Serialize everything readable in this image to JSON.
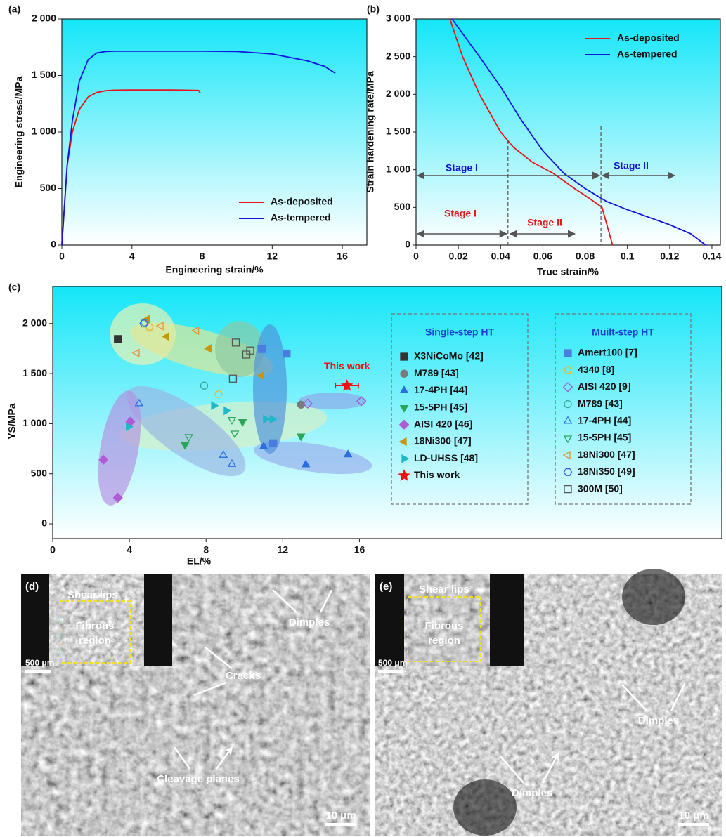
{
  "chart_data": [
    {
      "type": "line",
      "label": "(a)",
      "xlabel": "Engineering strain/%",
      "ylabel": "Engineering stress/MPa",
      "xlim": [
        0,
        17.4
      ],
      "ylim": [
        0,
        2000
      ],
      "xticks": [
        0,
        4,
        8,
        12,
        16
      ],
      "yticks": [
        0,
        500,
        {
          "value": 1000,
          "label": "1 000"
        },
        {
          "value": 1500,
          "label": "1 500"
        },
        {
          "value": 2000,
          "label": "2 000"
        }
      ],
      "legend": "lower right",
      "series": [
        {
          "name": "As-deposited",
          "color": "#e8141a",
          "x": [
            0,
            0.3,
            0.6,
            1.0,
            1.5,
            2.0,
            2.5,
            3,
            4,
            5,
            6,
            7,
            7.8,
            7.9
          ],
          "values": [
            0,
            700,
            1000,
            1200,
            1310,
            1350,
            1365,
            1370,
            1372,
            1372,
            1372,
            1370,
            1368,
            1345
          ]
        },
        {
          "name": "As-tempered",
          "color": "#1414e0",
          "x": [
            0,
            0.3,
            0.6,
            1.0,
            1.5,
            2.0,
            2.5,
            3,
            5,
            8,
            10,
            12,
            14,
            15,
            15.6
          ],
          "values": [
            0,
            700,
            1100,
            1450,
            1640,
            1700,
            1712,
            1715,
            1715,
            1715,
            1712,
            1690,
            1630,
            1580,
            1520
          ]
        }
      ]
    },
    {
      "type": "line",
      "label": "(b)",
      "xlabel": "True strain/%",
      "ylabel": "Strain hardening rate/MPa",
      "xlim": [
        0,
        0.144
      ],
      "ylim": [
        0,
        3000
      ],
      "xticks": [
        0,
        0.02,
        0.04,
        0.06,
        0.08,
        0.1,
        0.12,
        0.14
      ],
      "yticks": [
        0,
        500,
        {
          "value": 1000,
          "label": "1 000"
        },
        {
          "value": 1500,
          "label": "1 500"
        },
        {
          "value": 2000,
          "label": "2 000"
        },
        {
          "value": 2500,
          "label": "2 500"
        },
        {
          "value": 3000,
          "label": "3 000"
        }
      ],
      "legend": "upper right",
      "series": [
        {
          "name": "As-deposited",
          "color": "#e8141a",
          "x": [
            0.016,
            0.022,
            0.03,
            0.036,
            0.04,
            0.046,
            0.055,
            0.065,
            0.075,
            0.082,
            0.088,
            0.09,
            0.093
          ],
          "values": [
            3000,
            2500,
            2000,
            1700,
            1500,
            1300,
            1100,
            950,
            750,
            620,
            500,
            300,
            0
          ]
        },
        {
          "name": "As-tempered",
          "color": "#1414e0",
          "x": [
            0.017,
            0.03,
            0.04,
            0.05,
            0.06,
            0.07,
            0.08,
            0.09,
            0.1,
            0.11,
            0.12,
            0.13,
            0.137
          ],
          "values": [
            3000,
            2500,
            2100,
            1650,
            1250,
            950,
            750,
            580,
            470,
            370,
            270,
            150,
            0
          ]
        }
      ],
      "stage_boundaries": [
        0.0435,
        0.0875
      ],
      "annotations": [
        {
          "text": "Stage I",
          "color": "#1515d0"
        },
        {
          "text": "Stage II",
          "color": "#1515d0"
        },
        {
          "text": "Stage I",
          "color": "#e01818"
        },
        {
          "text": "Stage II",
          "color": "#e01818"
        }
      ]
    },
    {
      "type": "scatter",
      "label": "(c)",
      "xlabel": "EL/%",
      "ylabel": "YS/MPa",
      "annotation": "This work",
      "xlim": [
        0,
        34.9
      ],
      "ylim": [
        -147,
        2370
      ],
      "xticks": [
        0,
        4,
        8,
        12,
        16
      ],
      "yticks": [
        0,
        500,
        {
          "value": 1000,
          "label": "1 000"
        },
        {
          "value": 1500,
          "label": "1 500"
        },
        {
          "value": 2000,
          "label": "2 000"
        }
      ],
      "series_groups": [
        {
          "title": "Single-step HT",
          "series": [
            {
              "name": "X3NiCoMo [42]",
              "color": "#333333",
              "marker": "square",
              "filled": true,
              "x": [
                3.4
              ],
              "values": [
                1845
              ]
            },
            {
              "name": "M789 [43]",
              "color": "#7a7a7a",
              "marker": "circle",
              "filled": true,
              "x": [
                12.95
              ],
              "values": [
                1190
              ]
            },
            {
              "name": "17-4PH [44]",
              "color": "#2a6ee0",
              "marker": "triangle-up",
              "filled": true,
              "x": [
                11.0,
                13.2,
                15.4
              ],
              "values": [
                770,
                590,
                690
              ]
            },
            {
              "name": "15-5PH [45]",
              "color": "#2aa65a",
              "marker": "triangle-down",
              "filled": true,
              "x": [
                12.95,
                9.9,
                6.9
              ],
              "values": [
                875,
                1020,
                790
              ]
            },
            {
              "name": "AISI 420 [46]",
              "color": "#b05ad8",
              "marker": "diamond",
              "filled": true,
              "x": [
                2.65,
                3.4,
                4.05
              ],
              "values": [
                640,
                260,
                1020
              ]
            },
            {
              "name": "18Ni300 [47]",
              "color": "#c8960a",
              "marker": "triangle-left",
              "filled": true,
              "x": [
                8.15,
                5.95,
                10.9,
                4.95
              ],
              "values": [
                1750,
                1870,
                1480,
                2045
              ]
            },
            {
              "name": "LD-UHSS [48]",
              "color": "#1eb8c8",
              "marker": "triangle-right",
              "filled": true,
              "x": [
                8.4,
                9.05,
                3.95,
                11.1,
                11.45
              ],
              "values": [
                1180,
                1130,
                970,
                1045,
                1045
              ]
            },
            {
              "name": "This work",
              "color": "#f01010",
              "marker": "star",
              "filled": true,
              "x": [
                15.35
              ],
              "values": [
                1380
              ],
              "x_error": [
                0.6
              ],
              "y_error": [
                40
              ]
            }
          ]
        },
        {
          "title": "Muilt-step HT",
          "series": [
            {
              "name": "Amert100 [7]",
              "color": "#4a7de0",
              "marker": "square",
              "filled": true,
              "x": [
                10.9,
                12.2,
                11.5
              ],
              "values": [
                1745,
                1700,
                805
              ]
            },
            {
              "name": "4340 [8]",
              "color": "#e8b830",
              "marker": "pentagon",
              "filled": false,
              "x": [
                8.65,
                5.05
              ],
              "values": [
                1295,
                1965
              ]
            },
            {
              "name": "AISI 420 [9]",
              "color": "#9a5ad8",
              "marker": "diamond",
              "filled": false,
              "x": [
                13.3,
                16.1
              ],
              "values": [
                1200,
                1225
              ]
            },
            {
              "name": "M789 [43]",
              "color": "#3aa6a0",
              "marker": "circle",
              "filled": false,
              "x": [
                7.9,
                4.8
              ],
              "values": [
                1380,
                2010
              ]
            },
            {
              "name": "17-4PH [44]",
              "color": "#2a6ee0",
              "marker": "triangle-up",
              "filled": false,
              "x": [
                4.5,
                8.9,
                9.35
              ],
              "values": [
                1200,
                685,
                595
              ]
            },
            {
              "name": "15-5PH [45]",
              "color": "#2aa65a",
              "marker": "triangle-down",
              "filled": false,
              "x": [
                7.1,
                9.35,
                9.5
              ],
              "values": [
                870,
                1040,
                905
              ]
            },
            {
              "name": "18Ni300 [47]",
              "color": "#e8903a",
              "marker": "triangle-left",
              "filled": false,
              "x": [
                7.5,
                4.4,
                5.65
              ],
              "values": [
                1930,
                1705,
                1975
              ]
            },
            {
              "name": "18Ni350 [49]",
              "color": "#3a5ae8",
              "marker": "hexagon",
              "filled": false,
              "x": [
                4.75
              ],
              "values": [
                2000
              ]
            },
            {
              "name": "300M [50]",
              "color": "#555555",
              "marker": "square",
              "filled": false,
              "x": [
                9.55,
                9.4,
                10.1,
                10.3
              ],
              "values": [
                1810,
                1450,
                1690,
                1730
              ]
            }
          ]
        }
      ]
    }
  ],
  "panels": [
    {
      "label": "(d)",
      "shear_lips": "Shear lips",
      "fibrous_region": [
        "Fibrous",
        "region"
      ],
      "inset_scale": "500 μm",
      "annotations": [
        "Dimples",
        "Cracks",
        "Cleavage planes"
      ],
      "scale": "10 μm"
    },
    {
      "label": "(e)",
      "shear_lips": "Shear lips",
      "fibrous_region": [
        "Fibrous",
        "region"
      ],
      "inset_scale": "500 μm",
      "annotations": [
        "Dimples",
        "Dimples"
      ],
      "scale": "10 μm"
    }
  ]
}
